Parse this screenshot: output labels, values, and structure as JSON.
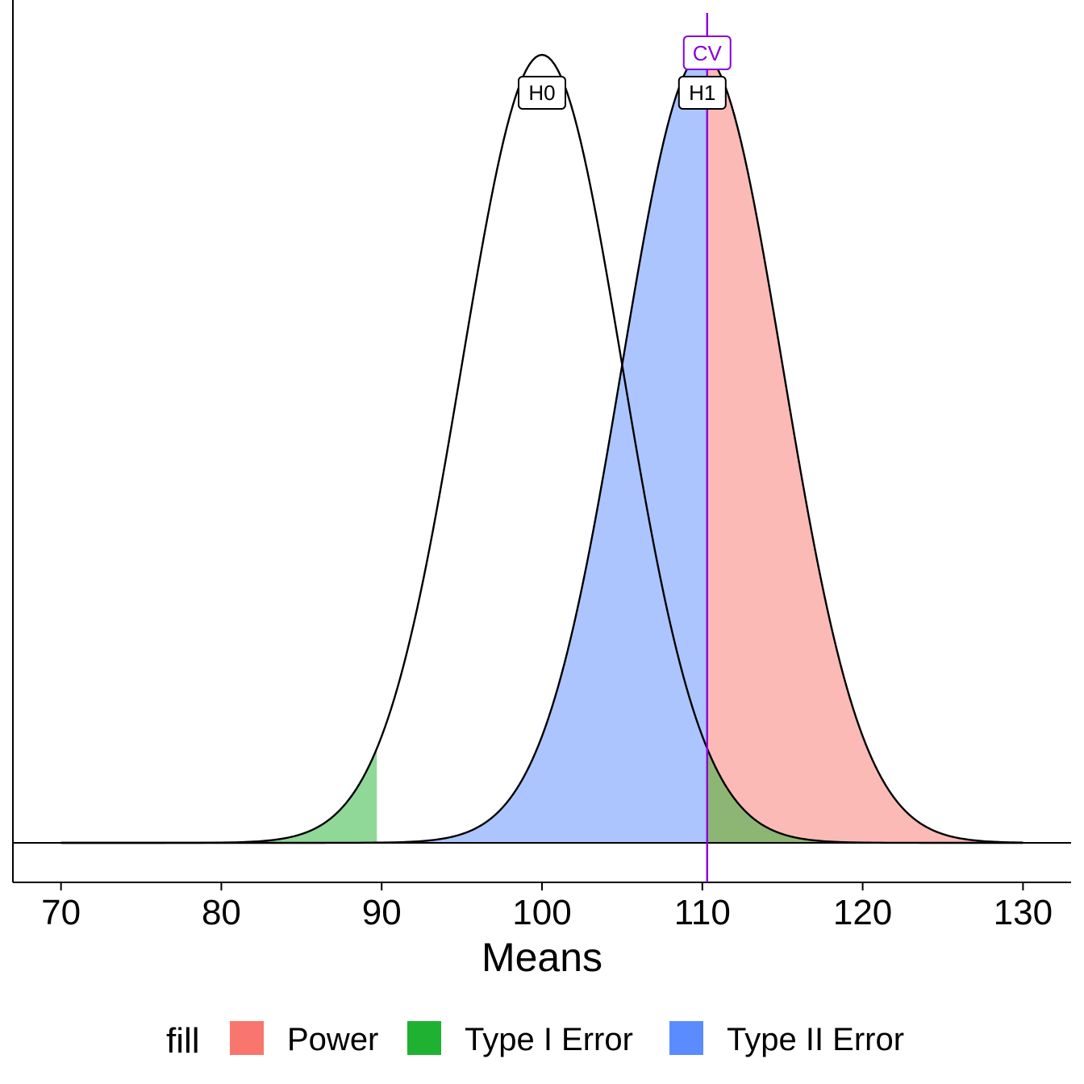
{
  "chart_data": {
    "type": "area",
    "xlabel": "Means",
    "ylabel": "",
    "xlim": [
      67,
      133
    ],
    "x_ticks": [
      70,
      80,
      90,
      100,
      110,
      120,
      130
    ],
    "x_tick_labels": [
      "70",
      "80",
      "90",
      "100",
      "110",
      "120",
      "130"
    ],
    "curve_range": [
      70,
      130
    ],
    "distributions": [
      {
        "label": "H0",
        "mean": 100,
        "sd": 5
      },
      {
        "label": "H1",
        "mean": 110,
        "sd": 5
      }
    ],
    "critical_value": {
      "label": "CV",
      "x": 110.3,
      "color": "#8800dd"
    },
    "lower_critical_value": 89.7,
    "regions": [
      {
        "name": "Power",
        "curve": "H1",
        "from": 110.3,
        "to": 130
      },
      {
        "name": "Type II Error",
        "curve": "H1",
        "from": 70,
        "to": 110.3
      },
      {
        "name": "Type I Error",
        "curve": "H0",
        "from": 70,
        "to": 89.7
      },
      {
        "name": "Type I Error",
        "curve": "H0",
        "from": 110.3,
        "to": 130
      }
    ],
    "legend": {
      "title": "fill",
      "position": "bottom",
      "entries": [
        {
          "label": "Power",
          "color": "#F8766D"
        },
        {
          "label": "Type I Error",
          "color": "#1fb232"
        },
        {
          "label": "Type II Error",
          "color": "#5a8cff"
        }
      ]
    },
    "grid": false
  }
}
